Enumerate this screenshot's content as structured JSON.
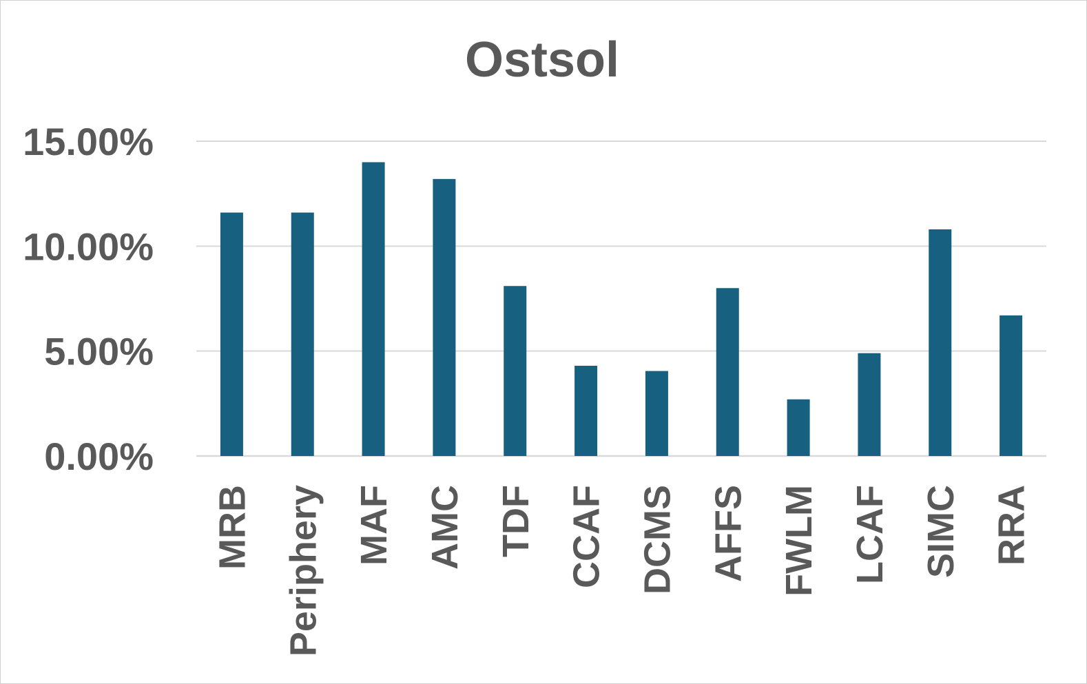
{
  "chart_data": {
    "type": "bar",
    "title": "Ostsol",
    "xlabel": "",
    "ylabel": "",
    "categories": [
      "MRB",
      "Periphery",
      "MAF",
      "AMC",
      "TDF",
      "CCAF",
      "DCMS",
      "AFFS",
      "FWLM",
      "LCAF",
      "SIMC",
      "RRA"
    ],
    "values": [
      11.6,
      11.6,
      14.0,
      13.2,
      8.1,
      4.3,
      4.05,
      8.0,
      2.7,
      4.9,
      10.8,
      6.7
    ],
    "ylim": [
      0,
      15
    ],
    "y_ticks": [
      0,
      5,
      10,
      15
    ],
    "y_tick_labels": [
      "0.00%",
      "5.00%",
      "10.00%",
      "15.00%"
    ],
    "grid": true,
    "legend": "none",
    "colors": {
      "bar": "#17607f",
      "grid": "#d9d9d9",
      "text": "#595959"
    }
  }
}
